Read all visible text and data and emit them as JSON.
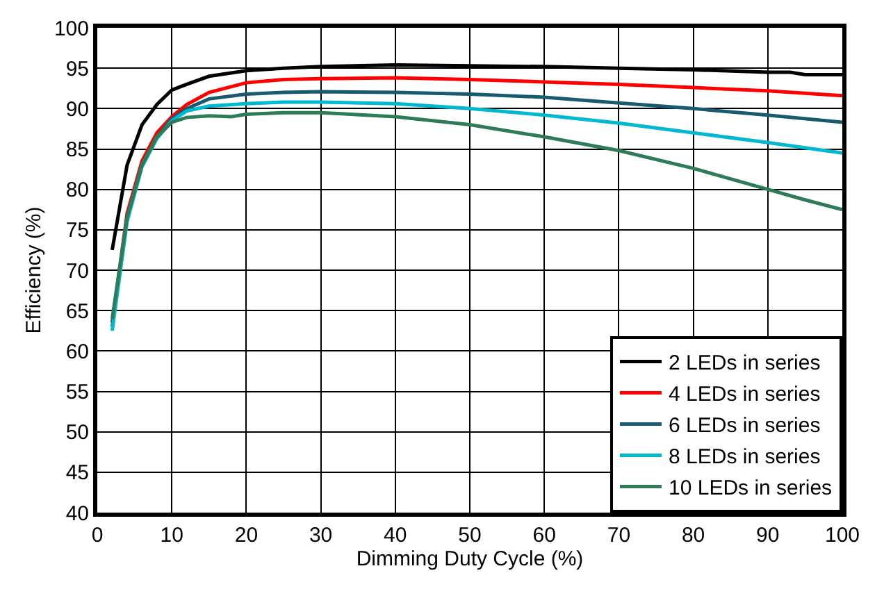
{
  "chart_data": {
    "type": "line",
    "xlabel": "Dimming Duty Cycle (%)",
    "ylabel": "Efficiency (%)",
    "xlim": [
      0,
      100
    ],
    "xticks": [
      0,
      10,
      20,
      30,
      40,
      50,
      60,
      70,
      80,
      90,
      100
    ],
    "ylim": [
      40,
      100
    ],
    "yticks": [
      40,
      45,
      50,
      55,
      60,
      65,
      70,
      75,
      80,
      85,
      90,
      95,
      100
    ],
    "grid": true,
    "legend": "bottom right",
    "marker": "none",
    "line_style": "solid",
    "series": [
      {
        "name": "2 LEDs in series",
        "color": "#000000",
        "x": [
          2,
          4,
          6,
          8,
          10,
          12,
          15,
          20,
          25,
          30,
          40,
          50,
          60,
          70,
          80,
          90,
          93,
          95,
          100
        ],
        "values": [
          72.5,
          83,
          88,
          90.5,
          92.3,
          93,
          94,
          94.7,
          95,
          95.2,
          95.4,
          95.3,
          95.2,
          95,
          94.8,
          94.5,
          94.5,
          94.2,
          94.2
        ]
      },
      {
        "name": "4 LEDs in series",
        "color": "#ff0000",
        "x": [
          2,
          4,
          6,
          8,
          10,
          12,
          15,
          20,
          25,
          30,
          40,
          50,
          60,
          70,
          80,
          90,
          100
        ],
        "values": [
          63.5,
          77,
          83.5,
          87,
          89,
          90.5,
          92,
          93.2,
          93.6,
          93.7,
          93.8,
          93.6,
          93.3,
          93,
          92.6,
          92.2,
          91.6
        ]
      },
      {
        "name": "6 LEDs in series",
        "color": "#1a5a6e",
        "x": [
          2,
          4,
          6,
          8,
          10,
          12,
          15,
          20,
          25,
          30,
          40,
          50,
          60,
          70,
          80,
          90,
          100
        ],
        "values": [
          63,
          76.5,
          83,
          86.5,
          88.7,
          90,
          91.2,
          91.8,
          92,
          92.1,
          92,
          91.8,
          91.4,
          90.7,
          90,
          89.2,
          88.3
        ]
      },
      {
        "name": "8 LEDs in series",
        "color": "#00b8d0",
        "x": [
          2,
          4,
          6,
          8,
          10,
          12,
          15,
          20,
          25,
          30,
          40,
          50,
          60,
          70,
          80,
          90,
          100
        ],
        "values": [
          62.5,
          76,
          82.8,
          86.3,
          88.5,
          89.7,
          90.3,
          90.6,
          90.8,
          90.8,
          90.6,
          90,
          89.2,
          88.2,
          87,
          85.8,
          84.5
        ]
      },
      {
        "name": "10 LEDs in series",
        "color": "#2e7b5a",
        "x": [
          2,
          4,
          6,
          8,
          10,
          12,
          15,
          18,
          20,
          25,
          30,
          40,
          50,
          60,
          70,
          80,
          90,
          95,
          100
        ],
        "values": [
          64,
          76.5,
          83,
          86.5,
          88.3,
          88.9,
          89.1,
          89,
          89.3,
          89.5,
          89.5,
          89,
          88,
          86.5,
          84.8,
          82.6,
          80,
          78.7,
          77.5
        ]
      }
    ]
  }
}
